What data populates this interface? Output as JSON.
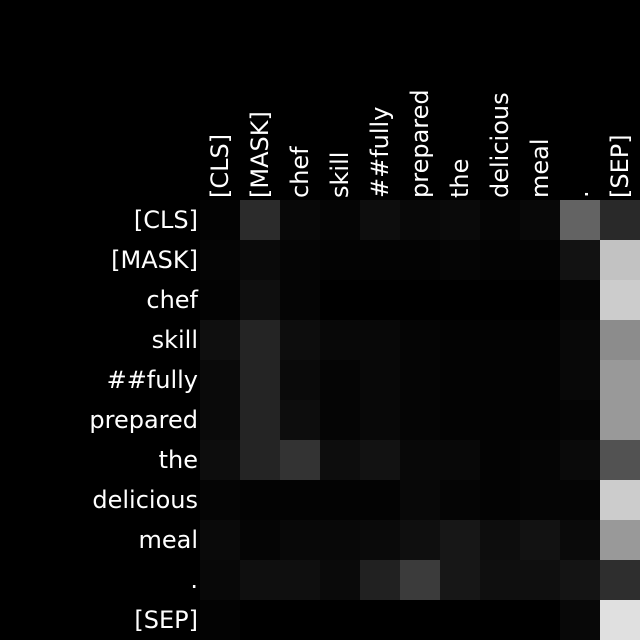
{
  "chart_data": {
    "type": "heatmap",
    "title": "",
    "xlabel": "",
    "ylabel": "",
    "colormap": "grayscale",
    "value_range": [
      0,
      1
    ],
    "background_color": "#000000",
    "label_color": "#ffffff",
    "x_labels": [
      "[CLS]",
      "[MASK]",
      "chef",
      "skill",
      "##fully",
      "prepared",
      "the",
      "delicious",
      "meal",
      ".",
      "[SEP]"
    ],
    "y_labels": [
      "[CLS]",
      "[MASK]",
      "chef",
      "skill",
      "##fully",
      "prepared",
      "the",
      "delicious",
      "meal",
      ".",
      "[SEP]"
    ],
    "values": [
      [
        0.01,
        0.17,
        0.03,
        0.02,
        0.05,
        0.03,
        0.04,
        0.02,
        0.03,
        0.39,
        0.16
      ],
      [
        0.02,
        0.04,
        0.02,
        0.01,
        0.01,
        0.01,
        0.02,
        0.01,
        0.01,
        0.07,
        0.76
      ],
      [
        0.01,
        0.06,
        0.02,
        0.0,
        0.0,
        0.0,
        0.0,
        0.0,
        0.0,
        0.02,
        0.8
      ],
      [
        0.06,
        0.14,
        0.05,
        0.03,
        0.03,
        0.02,
        0.01,
        0.01,
        0.01,
        0.03,
        0.55
      ],
      [
        0.04,
        0.14,
        0.04,
        0.02,
        0.03,
        0.02,
        0.01,
        0.01,
        0.01,
        0.03,
        0.6
      ],
      [
        0.04,
        0.14,
        0.05,
        0.02,
        0.03,
        0.02,
        0.01,
        0.01,
        0.01,
        0.02,
        0.6
      ],
      [
        0.05,
        0.14,
        0.2,
        0.05,
        0.07,
        0.03,
        0.03,
        0.01,
        0.02,
        0.04,
        0.32
      ],
      [
        0.02,
        0.01,
        0.01,
        0.01,
        0.01,
        0.03,
        0.02,
        0.01,
        0.02,
        0.02,
        0.8
      ],
      [
        0.04,
        0.02,
        0.03,
        0.03,
        0.04,
        0.06,
        0.09,
        0.05,
        0.07,
        0.04,
        0.6
      ],
      [
        0.03,
        0.06,
        0.06,
        0.04,
        0.13,
        0.23,
        0.09,
        0.06,
        0.06,
        0.08,
        0.18
      ],
      [
        0.01,
        0.0,
        0.0,
        0.0,
        0.0,
        0.0,
        0.0,
        0.0,
        0.0,
        0.03,
        0.88
      ]
    ]
  }
}
